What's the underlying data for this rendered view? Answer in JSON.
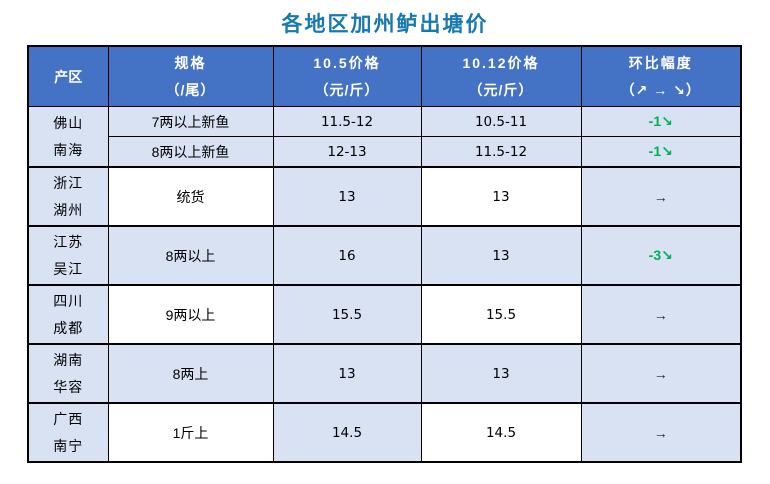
{
  "title": "各地区加州鲈出塘价",
  "colors": {
    "title_text": "#1879AE",
    "header_bg": "#4472C4",
    "header_text": "#FFFFFF",
    "row_light_blue": "#D9E2F3",
    "row_white": "#FFFFFF",
    "decline_green": "#00B050",
    "flat_arrow": "#1F1F1F",
    "border": "#000000"
  },
  "header": {
    "col1": "产区",
    "col2_line1": "规格",
    "col2_line2": "（/尾）",
    "col3_line1": "10.5价格",
    "col3_line2": "（元/斤）",
    "col4_line1": "10.12价格",
    "col4_line2": "（元/斤）",
    "col5_line1": "环比幅度",
    "col5_line2": "（↗ → ↘）"
  },
  "groups": [
    {
      "region_line1": "佛山",
      "region_line2": "南海",
      "rows": [
        {
          "spec": "7两以上新鱼",
          "price_10_5": "11.5-12",
          "price_10_12": "10.5-11",
          "change": "-1↘",
          "trend": "down"
        },
        {
          "spec": "8两以上新鱼",
          "price_10_5": "12-13",
          "price_10_12": "11.5-12",
          "change": "-1↘",
          "trend": "down"
        }
      ]
    },
    {
      "region_line1": "浙江",
      "region_line2": "湖州",
      "spec": "统货",
      "price_10_5": "13",
      "price_10_12": "13",
      "change": "→",
      "trend": "flat"
    },
    {
      "region_line1": "江苏",
      "region_line2": "吴江",
      "spec": "8两以上",
      "price_10_5": "16",
      "price_10_12": "13",
      "change": "-3↘",
      "trend": "down"
    },
    {
      "region_line1": "四川",
      "region_line2": "成都",
      "spec": "9两以上",
      "price_10_5": "15.5",
      "price_10_12": "15.5",
      "change": "→",
      "trend": "flat"
    },
    {
      "region_line1": "湖南",
      "region_line2": "华容",
      "spec": "8两上",
      "price_10_5": "13",
      "price_10_12": "13",
      "change": "→",
      "trend": "flat"
    },
    {
      "region_line1": "广西",
      "region_line2": "南宁",
      "spec": "1斤上",
      "price_10_5": "14.5",
      "price_10_12": "14.5",
      "change": "→",
      "trend": "flat"
    }
  ]
}
